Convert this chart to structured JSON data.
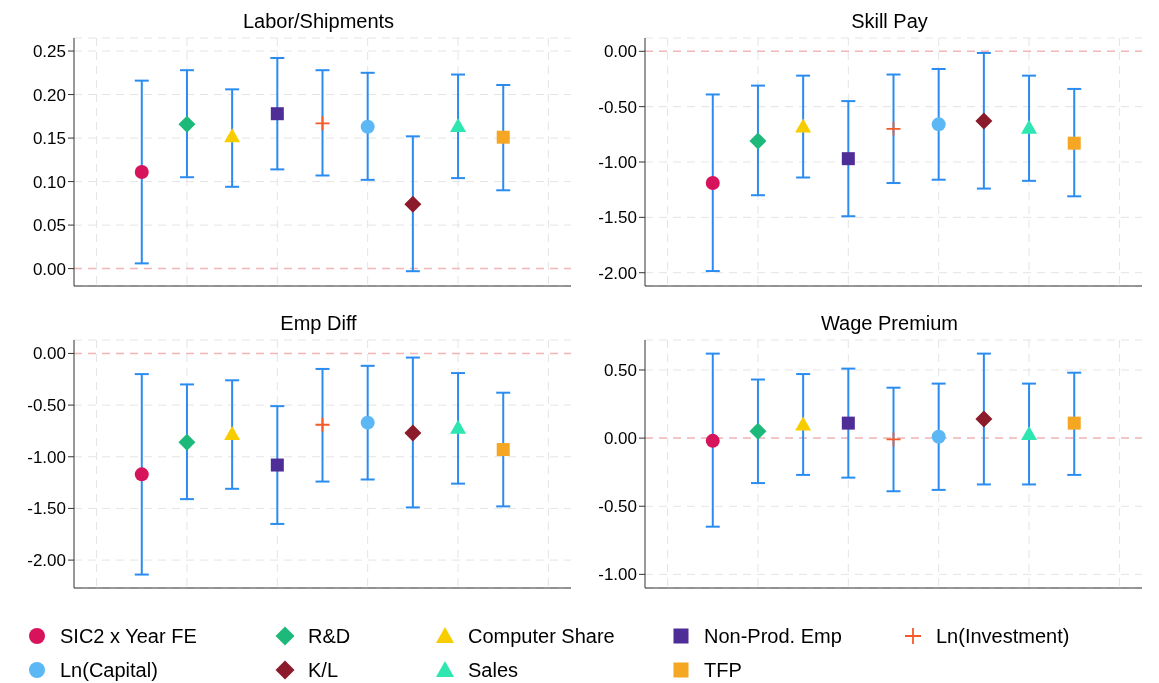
{
  "chart_data": [
    {
      "type": "scatter",
      "title": "Labor/Shipments",
      "categories": [
        null,
        null,
        null,
        null,
        null,
        null,
        null,
        null,
        null,
        null,
        null
      ],
      "ylim": [
        -0.02,
        0.265
      ],
      "yticks": [
        {
          "value": 0,
          "label": "0.00"
        },
        {
          "value": 0.05,
          "label": "0.05"
        },
        {
          "value": 0.1,
          "label": "0.10"
        },
        {
          "value": 0.15,
          "label": "0.15"
        },
        {
          "value": 0.2,
          "label": "0.20"
        },
        {
          "value": 0.25,
          "label": "0.25"
        }
      ],
      "tick_labels": "y",
      "grid": true,
      "legend": "bottom",
      "ref_lines": [
        {
          "axis": "y",
          "value": 0,
          "color": "#f4b6b6",
          "line_style": "dashed"
        }
      ],
      "series": [
        {
          "name": "SIC2 x Year FE",
          "color": "#d6135b",
          "marker": "circle",
          "values": [
            null,
            0.111,
            null,
            null,
            null,
            null,
            null,
            null,
            null,
            null,
            null
          ],
          "errors": [
            null,
            [
              0.006,
              0.216
            ],
            null,
            null,
            null,
            null,
            null,
            null,
            null,
            null,
            null
          ]
        },
        {
          "name": "R&D",
          "color": "#1cb97b",
          "marker": "diamond",
          "values": [
            null,
            null,
            0.166,
            null,
            null,
            null,
            null,
            null,
            null,
            null,
            null
          ],
          "errors": [
            null,
            null,
            [
              0.105,
              0.228
            ],
            null,
            null,
            null,
            null,
            null,
            null,
            null,
            null
          ]
        },
        {
          "name": "Computer Share",
          "color": "#f8cd00",
          "marker": "triangle",
          "values": [
            null,
            null,
            null,
            0.152,
            null,
            null,
            null,
            null,
            null,
            null,
            null
          ],
          "errors": [
            null,
            null,
            null,
            [
              0.094,
              0.206
            ],
            null,
            null,
            null,
            null,
            null,
            null,
            null
          ]
        },
        {
          "name": "Non-Prod. Emp",
          "color": "#4f2d96",
          "marker": "square",
          "values": [
            null,
            null,
            null,
            null,
            0.178,
            null,
            null,
            null,
            null,
            null,
            null
          ],
          "errors": [
            null,
            null,
            null,
            null,
            [
              0.114,
              0.242
            ],
            null,
            null,
            null,
            null,
            null,
            null
          ]
        },
        {
          "name": "Ln(Investment)",
          "color": "#f45a2a",
          "marker": "cross",
          "values": [
            null,
            null,
            null,
            null,
            null,
            0.167,
            null,
            null,
            null,
            null,
            null
          ],
          "errors": [
            null,
            null,
            null,
            null,
            null,
            [
              0.107,
              0.228
            ],
            null,
            null,
            null,
            null,
            null
          ]
        },
        {
          "name": "Ln(Capital)",
          "color": "#5bb8f5",
          "marker": "circle",
          "values": [
            null,
            null,
            null,
            null,
            null,
            null,
            0.163,
            null,
            null,
            null,
            null
          ],
          "errors": [
            null,
            null,
            null,
            null,
            null,
            null,
            [
              0.102,
              0.225
            ],
            null,
            null,
            null,
            null
          ]
        },
        {
          "name": "K/L",
          "color": "#8b1a2b",
          "marker": "diamond",
          "values": [
            null,
            null,
            null,
            null,
            null,
            null,
            null,
            0.074,
            null,
            null,
            null
          ],
          "errors": [
            null,
            null,
            null,
            null,
            null,
            null,
            null,
            [
              -0.003,
              0.152
            ],
            null,
            null,
            null
          ]
        },
        {
          "name": "Sales",
          "color": "#2ee6b0",
          "marker": "triangle",
          "values": [
            null,
            null,
            null,
            null,
            null,
            null,
            null,
            null,
            0.164,
            null,
            null
          ],
          "errors": [
            null,
            null,
            null,
            null,
            null,
            null,
            null,
            null,
            [
              0.104,
              0.223
            ],
            null,
            null
          ]
        },
        {
          "name": "TFP",
          "color": "#f5a623",
          "marker": "square",
          "values": [
            null,
            null,
            null,
            null,
            null,
            null,
            null,
            null,
            null,
            0.151,
            null
          ],
          "errors": [
            null,
            null,
            null,
            null,
            null,
            null,
            null,
            null,
            null,
            [
              0.09,
              0.211
            ],
            null
          ]
        }
      ]
    },
    {
      "type": "scatter",
      "title": "Skill Pay",
      "categories": [
        null,
        null,
        null,
        null,
        null,
        null,
        null,
        null,
        null,
        null,
        null
      ],
      "ylim": [
        -2.12,
        0.12
      ],
      "yticks": [
        {
          "value": -2,
          "label": "-2.00"
        },
        {
          "value": -1.5,
          "label": "-1.50"
        },
        {
          "value": -1,
          "label": "-1.00"
        },
        {
          "value": -0.5,
          "label": "-0.50"
        },
        {
          "value": 0,
          "label": "0.00"
        }
      ],
      "tick_labels": "y",
      "grid": true,
      "ref_lines": [
        {
          "axis": "y",
          "value": 0,
          "color": "#f4b6b6",
          "line_style": "dashed"
        }
      ],
      "series": [
        {
          "color": "#d6135b",
          "marker": "circle",
          "values": [
            null,
            -1.19,
            null,
            null,
            null,
            null,
            null,
            null,
            null,
            null,
            null
          ],
          "errors": [
            null,
            [
              -1.985,
              -0.39
            ],
            null,
            null,
            null,
            null,
            null,
            null,
            null,
            null,
            null
          ]
        },
        {
          "color": "#1cb97b",
          "marker": "diamond",
          "values": [
            null,
            null,
            -0.81,
            null,
            null,
            null,
            null,
            null,
            null,
            null,
            null
          ],
          "errors": [
            null,
            null,
            [
              -1.3,
              -0.31
            ],
            null,
            null,
            null,
            null,
            null,
            null,
            null,
            null
          ]
        },
        {
          "color": "#f8cd00",
          "marker": "triangle",
          "values": [
            null,
            null,
            null,
            -0.68,
            null,
            null,
            null,
            null,
            null,
            null,
            null
          ],
          "errors": [
            null,
            null,
            null,
            [
              -1.14,
              -0.22
            ],
            null,
            null,
            null,
            null,
            null,
            null,
            null
          ]
        },
        {
          "color": "#4f2d96",
          "marker": "square",
          "values": [
            null,
            null,
            null,
            null,
            -0.97,
            null,
            null,
            null,
            null,
            null,
            null
          ],
          "errors": [
            null,
            null,
            null,
            null,
            [
              -1.49,
              -0.45
            ],
            null,
            null,
            null,
            null,
            null,
            null
          ]
        },
        {
          "color": "#f45a2a",
          "marker": "cross",
          "values": [
            null,
            null,
            null,
            null,
            null,
            -0.7,
            null,
            null,
            null,
            null,
            null
          ],
          "errors": [
            null,
            null,
            null,
            null,
            null,
            [
              -1.19,
              -0.21
            ],
            null,
            null,
            null,
            null,
            null
          ]
        },
        {
          "color": "#5bb8f5",
          "marker": "circle",
          "values": [
            null,
            null,
            null,
            null,
            null,
            null,
            -0.66,
            null,
            null,
            null,
            null
          ],
          "errors": [
            null,
            null,
            null,
            null,
            null,
            null,
            [
              -1.16,
              -0.16
            ],
            null,
            null,
            null,
            null
          ]
        },
        {
          "color": "#8b1a2b",
          "marker": "diamond",
          "values": [
            null,
            null,
            null,
            null,
            null,
            null,
            null,
            -0.63,
            null,
            null,
            null
          ],
          "errors": [
            null,
            null,
            null,
            null,
            null,
            null,
            null,
            [
              -1.24,
              -0.015
            ],
            null,
            null,
            null
          ]
        },
        {
          "color": "#2ee6b0",
          "marker": "triangle",
          "values": [
            null,
            null,
            null,
            null,
            null,
            null,
            null,
            null,
            -0.69,
            null,
            null
          ],
          "errors": [
            null,
            null,
            null,
            null,
            null,
            null,
            null,
            null,
            [
              -1.17,
              -0.22
            ],
            null,
            null
          ]
        },
        {
          "color": "#f5a623",
          "marker": "square",
          "values": [
            null,
            null,
            null,
            null,
            null,
            null,
            null,
            null,
            null,
            -0.83,
            null
          ],
          "errors": [
            null,
            null,
            null,
            null,
            null,
            null,
            null,
            null,
            null,
            [
              -1.31,
              -0.34
            ],
            null
          ]
        }
      ]
    },
    {
      "type": "scatter",
      "title": "Emp Diff",
      "categories": [
        null,
        null,
        null,
        null,
        null,
        null,
        null,
        null,
        null,
        null,
        null
      ],
      "ylim": [
        -2.27,
        0.13
      ],
      "yticks": [
        {
          "value": -2,
          "label": "-2.00"
        },
        {
          "value": -1.5,
          "label": "-1.50"
        },
        {
          "value": -1,
          "label": "-1.00"
        },
        {
          "value": -0.5,
          "label": "-0.50"
        },
        {
          "value": 0,
          "label": "0.00"
        }
      ],
      "tick_labels": "y",
      "grid": true,
      "ref_lines": [
        {
          "axis": "y",
          "value": 0,
          "color": "#f4b6b6",
          "line_style": "dashed"
        }
      ],
      "series": [
        {
          "color": "#d6135b",
          "marker": "circle",
          "values": [
            null,
            -1.17,
            null,
            null,
            null,
            null,
            null,
            null,
            null,
            null,
            null
          ],
          "errors": [
            null,
            [
              -2.14,
              -0.2
            ],
            null,
            null,
            null,
            null,
            null,
            null,
            null,
            null,
            null
          ]
        },
        {
          "color": "#1cb97b",
          "marker": "diamond",
          "values": [
            null,
            null,
            -0.86,
            null,
            null,
            null,
            null,
            null,
            null,
            null,
            null
          ],
          "errors": [
            null,
            null,
            [
              -1.41,
              -0.3
            ],
            null,
            null,
            null,
            null,
            null,
            null,
            null,
            null
          ]
        },
        {
          "color": "#f8cd00",
          "marker": "triangle",
          "values": [
            null,
            null,
            null,
            -0.78,
            null,
            null,
            null,
            null,
            null,
            null,
            null
          ],
          "errors": [
            null,
            null,
            null,
            [
              -1.31,
              -0.26
            ],
            null,
            null,
            null,
            null,
            null,
            null,
            null
          ]
        },
        {
          "color": "#4f2d96",
          "marker": "square",
          "values": [
            null,
            null,
            null,
            null,
            -1.08,
            null,
            null,
            null,
            null,
            null,
            null
          ],
          "errors": [
            null,
            null,
            null,
            null,
            [
              -1.65,
              -0.51
            ],
            null,
            null,
            null,
            null,
            null,
            null
          ]
        },
        {
          "color": "#f45a2a",
          "marker": "cross",
          "values": [
            null,
            null,
            null,
            null,
            null,
            -0.69,
            null,
            null,
            null,
            null,
            null
          ],
          "errors": [
            null,
            null,
            null,
            null,
            null,
            [
              -1.24,
              -0.15
            ],
            null,
            null,
            null,
            null,
            null
          ]
        },
        {
          "color": "#5bb8f5",
          "marker": "circle",
          "values": [
            null,
            null,
            null,
            null,
            null,
            null,
            -0.67,
            null,
            null,
            null,
            null
          ],
          "errors": [
            null,
            null,
            null,
            null,
            null,
            null,
            [
              -1.22,
              -0.12
            ],
            null,
            null,
            null,
            null
          ]
        },
        {
          "color": "#8b1a2b",
          "marker": "diamond",
          "values": [
            null,
            null,
            null,
            null,
            null,
            null,
            null,
            -0.77,
            null,
            null,
            null
          ],
          "errors": [
            null,
            null,
            null,
            null,
            null,
            null,
            null,
            [
              -1.49,
              -0.04
            ],
            null,
            null,
            null
          ]
        },
        {
          "color": "#2ee6b0",
          "marker": "triangle",
          "values": [
            null,
            null,
            null,
            null,
            null,
            null,
            null,
            null,
            -0.72,
            null,
            null
          ],
          "errors": [
            null,
            null,
            null,
            null,
            null,
            null,
            null,
            null,
            [
              -1.26,
              -0.19
            ],
            null,
            null
          ]
        },
        {
          "color": "#f5a623",
          "marker": "square",
          "values": [
            null,
            null,
            null,
            null,
            null,
            null,
            null,
            null,
            null,
            -0.93,
            null
          ],
          "errors": [
            null,
            null,
            null,
            null,
            null,
            null,
            null,
            null,
            null,
            [
              -1.48,
              -0.38
            ],
            null
          ]
        }
      ]
    },
    {
      "type": "scatter",
      "title": "Wage Premium",
      "categories": [
        null,
        null,
        null,
        null,
        null,
        null,
        null,
        null,
        null,
        null,
        null
      ],
      "ylim": [
        -1.1,
        0.72
      ],
      "yticks": [
        {
          "value": -1,
          "label": "-1.00"
        },
        {
          "value": -0.5,
          "label": "-0.50"
        },
        {
          "value": 0,
          "label": "0.00"
        },
        {
          "value": 0.5,
          "label": "0.50"
        }
      ],
      "tick_labels": "y",
      "grid": true,
      "ref_lines": [
        {
          "axis": "y",
          "value": 0,
          "color": "#f4b6b6",
          "line_style": "dashed"
        }
      ],
      "series": [
        {
          "color": "#d6135b",
          "marker": "circle",
          "values": [
            null,
            -0.02,
            null,
            null,
            null,
            null,
            null,
            null,
            null,
            null,
            null
          ],
          "errors": [
            null,
            [
              -0.65,
              0.62
            ],
            null,
            null,
            null,
            null,
            null,
            null,
            null,
            null,
            null
          ]
        },
        {
          "color": "#1cb97b",
          "marker": "diamond",
          "values": [
            null,
            null,
            0.05,
            null,
            null,
            null,
            null,
            null,
            null,
            null,
            null
          ],
          "errors": [
            null,
            null,
            [
              -0.33,
              0.43
            ],
            null,
            null,
            null,
            null,
            null,
            null,
            null,
            null
          ]
        },
        {
          "color": "#f8cd00",
          "marker": "triangle",
          "values": [
            null,
            null,
            null,
            0.1,
            null,
            null,
            null,
            null,
            null,
            null,
            null
          ],
          "errors": [
            null,
            null,
            null,
            [
              -0.27,
              0.47
            ],
            null,
            null,
            null,
            null,
            null,
            null,
            null
          ]
        },
        {
          "color": "#4f2d96",
          "marker": "square",
          "values": [
            null,
            null,
            null,
            null,
            0.11,
            null,
            null,
            null,
            null,
            null,
            null
          ],
          "errors": [
            null,
            null,
            null,
            null,
            [
              -0.29,
              0.51
            ],
            null,
            null,
            null,
            null,
            null,
            null
          ]
        },
        {
          "color": "#f45a2a",
          "marker": "cross",
          "values": [
            null,
            null,
            null,
            null,
            null,
            -0.01,
            null,
            null,
            null,
            null,
            null
          ],
          "errors": [
            null,
            null,
            null,
            null,
            null,
            [
              -0.39,
              0.37
            ],
            null,
            null,
            null,
            null,
            null
          ]
        },
        {
          "color": "#5bb8f5",
          "marker": "circle",
          "values": [
            null,
            null,
            null,
            null,
            null,
            null,
            0.01,
            null,
            null,
            null,
            null
          ],
          "errors": [
            null,
            null,
            null,
            null,
            null,
            null,
            [
              -0.38,
              0.4
            ],
            null,
            null,
            null,
            null
          ]
        },
        {
          "color": "#8b1a2b",
          "marker": "diamond",
          "values": [
            null,
            null,
            null,
            null,
            null,
            null,
            null,
            0.14,
            null,
            null,
            null
          ],
          "errors": [
            null,
            null,
            null,
            null,
            null,
            null,
            null,
            [
              -0.34,
              0.62
            ],
            null,
            null,
            null
          ]
        },
        {
          "color": "#2ee6b0",
          "marker": "triangle",
          "values": [
            null,
            null,
            null,
            null,
            null,
            null,
            null,
            null,
            0.03,
            null,
            null
          ],
          "errors": [
            null,
            null,
            null,
            null,
            null,
            null,
            null,
            null,
            [
              -0.34,
              0.4
            ],
            null,
            null
          ]
        },
        {
          "color": "#f5a623",
          "marker": "square",
          "values": [
            null,
            null,
            null,
            null,
            null,
            null,
            null,
            null,
            null,
            0.11,
            null
          ],
          "errors": [
            null,
            null,
            null,
            null,
            null,
            null,
            null,
            null,
            null,
            [
              -0.27,
              0.48
            ],
            null
          ]
        }
      ]
    }
  ]
}
